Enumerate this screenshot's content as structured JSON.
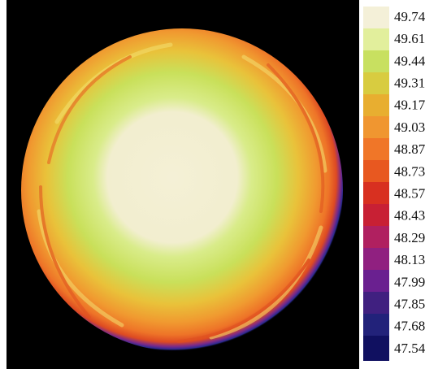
{
  "colorbar": {
    "labels": [
      "49.74",
      "49.61",
      "49.44",
      "49.31",
      "49.17",
      "49.03",
      "48.87",
      "48.73",
      "48.57",
      "48.43",
      "48.29",
      "48.13",
      "47.99",
      "47.85",
      "47.68",
      "47.54"
    ]
  }
}
